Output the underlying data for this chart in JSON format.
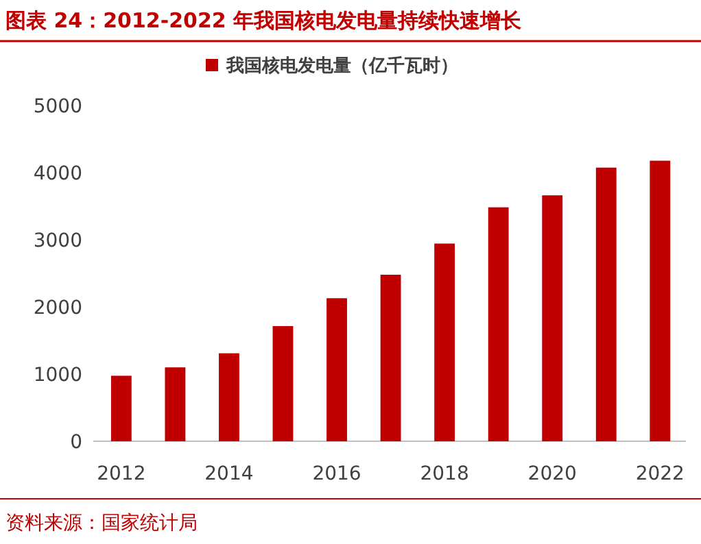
{
  "chart_data": {
    "type": "bar",
    "title": "图表 24：2012-2022 年我国核电发电量持续快速增长",
    "categories": [
      "2012",
      null,
      "2014",
      null,
      "2016",
      null,
      "2018",
      null,
      "2020",
      null,
      "2022"
    ],
    "series": [
      {
        "name": "我国核电发电量（亿千瓦时）",
        "color": "#c00000",
        "values": [
          975,
          1100,
          1310,
          1715,
          2130,
          2480,
          2944,
          3484,
          3662,
          4075,
          4178
        ]
      }
    ],
    "ylim": [
      0,
      5000
    ],
    "yticks": [
      0,
      1000,
      2000,
      3000,
      4000,
      5000
    ],
    "grid": false,
    "legend": "top",
    "annotations": [
      "资料来源：国家统计局"
    ]
  }
}
